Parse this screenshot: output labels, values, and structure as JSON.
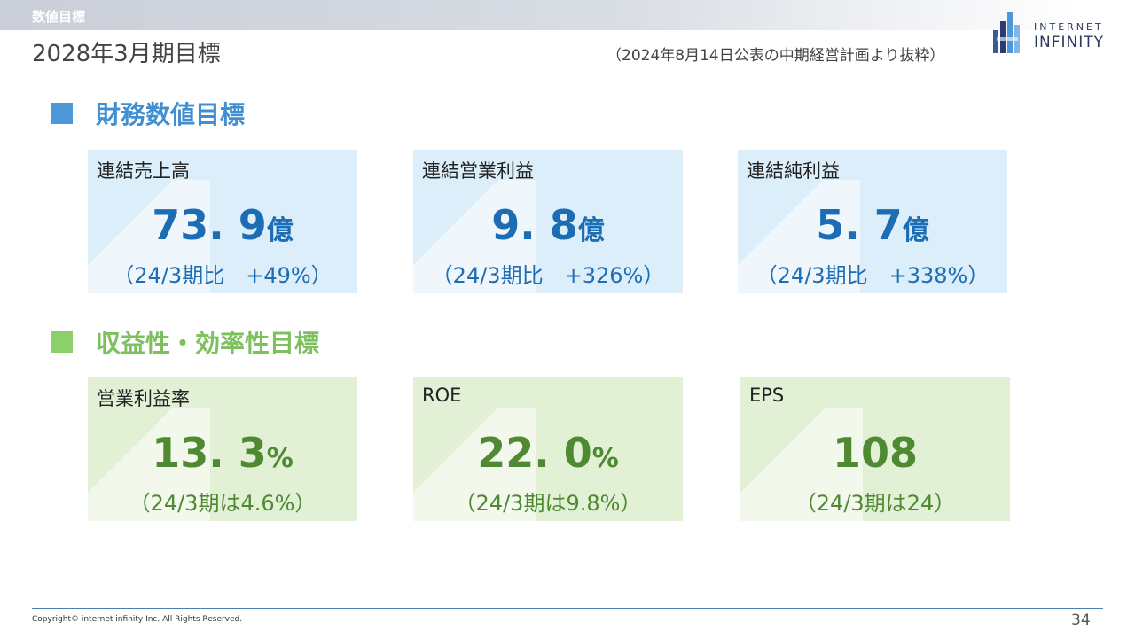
{
  "header": {
    "section_label": "数値目標",
    "title": "2028年3月期目標",
    "source_note": "（2024年8月14日公表の中期経営計画より抜粋）",
    "logo_line1": "INTERNET",
    "logo_line2": "INFINITY"
  },
  "colors": {
    "blue_accent": "#1d6db5",
    "green_accent": "#4f8a32",
    "blue_bg": "#dbeef9",
    "green_bg": "#e2f0d6"
  },
  "financial": {
    "heading": "財務数値目標",
    "cards": [
      {
        "label": "連結売上高",
        "value": "73. 9",
        "unit": "億",
        "sub": "（24/3期比　+49%）"
      },
      {
        "label": "連結営業利益",
        "value": "9. 8",
        "unit": "億",
        "sub": "（24/3期比　+326%）"
      },
      {
        "label": "連結純利益",
        "value": "5. 7",
        "unit": "億",
        "sub": "（24/3期比　+338%）"
      }
    ]
  },
  "efficiency": {
    "heading": "収益性・効率性目標",
    "cards": [
      {
        "label": "営業利益率",
        "value": "13. 3",
        "unit": "%",
        "sub": "（24/3期は4.6%）"
      },
      {
        "label": "ROE",
        "value": "22. 0",
        "unit": "%",
        "sub": "（24/3期は9.8%）"
      },
      {
        "label": "EPS",
        "value": "108",
        "unit": "",
        "sub": "（24/3期は24）"
      }
    ]
  },
  "footer": {
    "copyright": "Copyright© internet infinity Inc. All Rights Reserved.",
    "page_number": "34"
  }
}
